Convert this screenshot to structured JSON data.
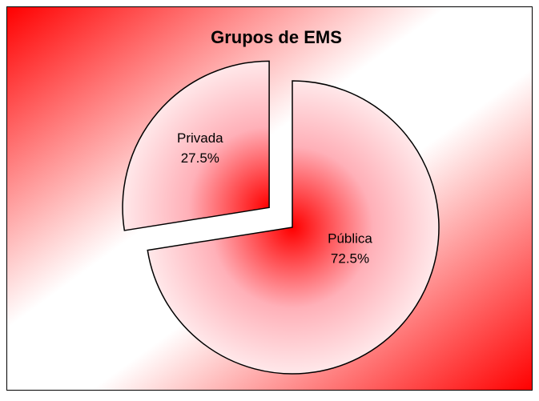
{
  "chart_data": {
    "type": "pie",
    "title": "Grupos de EMS",
    "categories": [
      "Pública",
      "Privada"
    ],
    "values": [
      72.5,
      27.5
    ],
    "value_labels": [
      "72.5%",
      "27.5%"
    ],
    "explode": [
      false,
      true
    ]
  }
}
